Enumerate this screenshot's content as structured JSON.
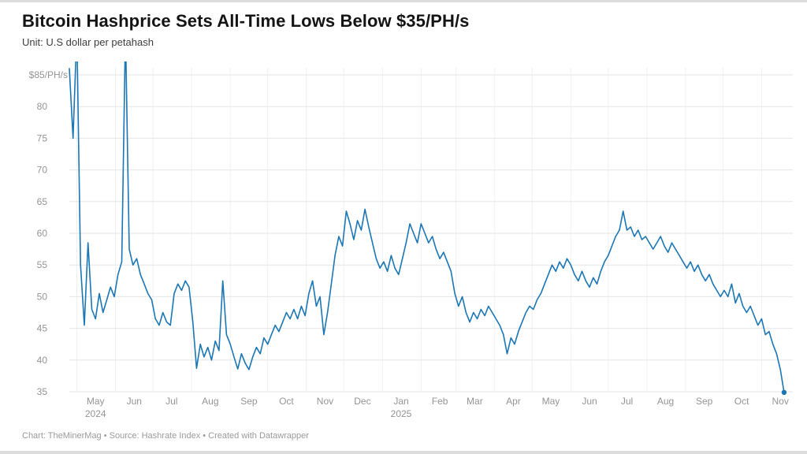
{
  "header": {
    "title": "Bitcoin Hashprice Sets All-Time Lows Below $35/PH/s",
    "subtitle": "Unit: U.S dollar per petahash"
  },
  "footer": {
    "credit": "Chart: TheMinerMag • Source: Hashrate Index • Created with Datawrapper"
  },
  "chart_data": {
    "type": "line",
    "title": "Bitcoin Hashprice Sets All-Time Lows Below $35/PH/s",
    "unit": "U.S dollar per petahash",
    "line_color": "#1a76b5",
    "grid": true,
    "end_dot": true,
    "ylim": [
      35,
      85
    ],
    "y_ticks": [
      35,
      40,
      45,
      50,
      55,
      60,
      65,
      70,
      75,
      80
    ],
    "y_top_label": "$85/PH/s",
    "start_date": "2024-04-25",
    "step_days": 3,
    "values": [
      86,
      75,
      92,
      55,
      45.5,
      58.5,
      48,
      46.5,
      50.5,
      47.5,
      49.5,
      51.5,
      50,
      53.5,
      55.5,
      92,
      57.5,
      55,
      56,
      53.5,
      52,
      50.5,
      49.5,
      46.5,
      45.5,
      47.5,
      46,
      45.5,
      50.5,
      52,
      51,
      52.5,
      51.5,
      46,
      38.7,
      42.5,
      40.5,
      42,
      40,
      43,
      41.5,
      52.5,
      44,
      42.5,
      40.5,
      38.6,
      41,
      39.5,
      38.5,
      40.5,
      42,
      41,
      43.5,
      42.5,
      44,
      45.5,
      44.5,
      46,
      47.5,
      46.5,
      48,
      46.5,
      48.5,
      47,
      50.5,
      52.5,
      48.5,
      50,
      44,
      47.5,
      52,
      56.5,
      59.5,
      58,
      63.5,
      61.5,
      59,
      62,
      60.5,
      63.8,
      61,
      58.5,
      56,
      54.5,
      55.5,
      54,
      56.5,
      54.5,
      53.5,
      56,
      58.5,
      61.5,
      60,
      58.5,
      61.5,
      60,
      58.5,
      59.5,
      57.5,
      56,
      57,
      55.5,
      54,
      50.5,
      48.5,
      50,
      47.5,
      46,
      47.5,
      46.5,
      48,
      47,
      48.5,
      47.5,
      46.5,
      45.5,
      44,
      41,
      43.5,
      42.5,
      44.5,
      46,
      47.5,
      48.5,
      48,
      49.5,
      50.5,
      52,
      53.5,
      55,
      54,
      55.5,
      54.5,
      56,
      55,
      53.5,
      52.5,
      54,
      52.5,
      51.5,
      53,
      52,
      54,
      55.5,
      56.5,
      58,
      59.5,
      60.5,
      63.5,
      60.5,
      61,
      59.5,
      60.5,
      59,
      59.5,
      58.5,
      57.5,
      58.5,
      59.5,
      58,
      57,
      58.5,
      57.5,
      56.5,
      55.5,
      54.5,
      55.5,
      54,
      55,
      53.5,
      52.5,
      53.5,
      52,
      51,
      50,
      51,
      50,
      52,
      49,
      50.5,
      48.5,
      47.5,
      48.5,
      47,
      45.5,
      46.5,
      44,
      44.5,
      42.5,
      41,
      38.5,
      34.9
    ],
    "x_month_ticks": [
      {
        "label": "May",
        "date": "2024-05-01"
      },
      {
        "label": "Jun",
        "date": "2024-06-01"
      },
      {
        "label": "Jul",
        "date": "2024-07-01"
      },
      {
        "label": "Aug",
        "date": "2024-08-01"
      },
      {
        "label": "Sep",
        "date": "2024-09-01"
      },
      {
        "label": "Oct",
        "date": "2024-10-01"
      },
      {
        "label": "Nov",
        "date": "2024-11-01"
      },
      {
        "label": "Dec",
        "date": "2024-12-01"
      },
      {
        "label": "Jan",
        "date": "2025-01-01"
      },
      {
        "label": "Feb",
        "date": "2025-02-01"
      },
      {
        "label": "Mar",
        "date": "2025-03-01"
      },
      {
        "label": "Apr",
        "date": "2025-04-01"
      },
      {
        "label": "May",
        "date": "2025-05-01"
      },
      {
        "label": "Jun",
        "date": "2025-06-01"
      },
      {
        "label": "Jul",
        "date": "2025-07-01"
      },
      {
        "label": "Aug",
        "date": "2025-08-01"
      },
      {
        "label": "Sep",
        "date": "2025-09-01"
      },
      {
        "label": "Oct",
        "date": "2025-10-01"
      },
      {
        "label": "Nov",
        "date": "2025-11-01"
      }
    ],
    "year_labels": [
      {
        "label": "2024",
        "date": "2024-05-16"
      },
      {
        "label": "2025",
        "date": "2025-01-16"
      }
    ]
  }
}
